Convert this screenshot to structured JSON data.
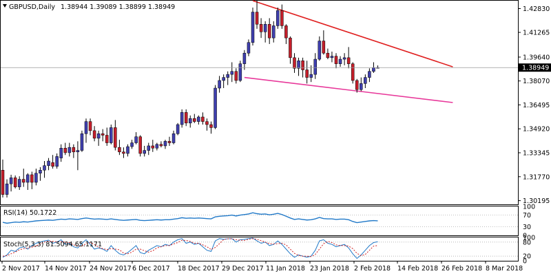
{
  "header": {
    "symbol_timeframe": "GBPUSD,Daily",
    "ohlc": "1.38944 1.39089 1.38899 1.38949"
  },
  "colors": {
    "bull_body": "#3f3fae",
    "bear_body": "#c51f2b",
    "wick": "#000000",
    "resistance_line": "#e02020",
    "support_line": "#e8389a",
    "last_price_line": "#9b9b9b",
    "rsi_line": "#1f78c8",
    "stoch_main": "#1f78c8",
    "stoch_signal": "#d02020",
    "grid_dotted": "#aaaaaa"
  },
  "chart_data": [
    {
      "type": "candlestick",
      "title": "GBPUSD,Daily",
      "y_ticks": [
        "1.42830",
        "1.41265",
        "1.39640",
        "1.38070",
        "1.36495",
        "1.34920",
        "1.33345",
        "1.31770",
        "1.30195"
      ],
      "ylim": [
        1.2995,
        1.4335
      ],
      "last_price_label": "1.38949",
      "last_price": 1.38949,
      "x_ticks": [
        "2 Nov 2017",
        "14 Nov 2017",
        "24 Nov 2017",
        "6 Dec 2017",
        "18 Dec 2017",
        "29 Dec 2017",
        "11 Jan 2018",
        "23 Jan 2018",
        "2 Feb 2018",
        "14 Feb 2018",
        "26 Feb 2018",
        "8 Mar 2018"
      ],
      "candles": [
        [
          1.322,
          1.329,
          1.304,
          1.306
        ],
        [
          1.306,
          1.316,
          1.304,
          1.313
        ],
        [
          1.313,
          1.319,
          1.308,
          1.317
        ],
        [
          1.317,
          1.3185,
          1.31,
          1.311
        ],
        [
          1.311,
          1.318,
          1.309,
          1.316
        ],
        [
          1.316,
          1.323,
          1.311,
          1.314
        ],
        [
          1.314,
          1.32,
          1.309,
          1.319
        ],
        [
          1.319,
          1.321,
          1.3095,
          1.314
        ],
        [
          1.314,
          1.323,
          1.312,
          1.32
        ],
        [
          1.32,
          1.324,
          1.315,
          1.322
        ],
        [
          1.322,
          1.328,
          1.317,
          1.325
        ],
        [
          1.325,
          1.33,
          1.322,
          1.328
        ],
        [
          1.327,
          1.332,
          1.323,
          1.3245
        ],
        [
          1.3245,
          1.333,
          1.323,
          1.331
        ],
        [
          1.33,
          1.339,
          1.3275,
          1.3365
        ],
        [
          1.3365,
          1.34,
          1.332,
          1.3335
        ],
        [
          1.3335,
          1.34,
          1.331,
          1.337
        ],
        [
          1.337,
          1.339,
          1.33,
          1.334
        ],
        [
          1.334,
          1.341,
          1.322,
          1.335
        ],
        [
          1.335,
          1.348,
          1.334,
          1.346
        ],
        [
          1.346,
          1.356,
          1.34,
          1.354
        ],
        [
          1.354,
          1.356,
          1.345,
          1.348
        ],
        [
          1.348,
          1.351,
          1.341,
          1.343
        ],
        [
          1.343,
          1.348,
          1.338,
          1.346
        ],
        [
          1.346,
          1.349,
          1.341,
          1.345
        ],
        [
          1.345,
          1.35,
          1.338,
          1.34
        ],
        [
          1.34,
          1.352,
          1.339,
          1.35
        ],
        [
          1.35,
          1.355,
          1.335,
          1.337
        ],
        [
          1.337,
          1.342,
          1.332,
          1.334
        ],
        [
          1.334,
          1.337,
          1.33,
          1.333
        ],
        [
          1.333,
          1.339,
          1.331,
          1.3375
        ],
        [
          1.3375,
          1.342,
          1.336,
          1.34
        ],
        [
          1.34,
          1.347,
          1.339,
          1.344
        ],
        [
          1.344,
          1.345,
          1.331,
          1.333
        ],
        [
          1.333,
          1.338,
          1.331,
          1.335
        ],
        [
          1.335,
          1.34,
          1.332,
          1.338
        ],
        [
          1.338,
          1.342,
          1.334,
          1.3365
        ],
        [
          1.3365,
          1.34,
          1.335,
          1.339
        ],
        [
          1.339,
          1.341,
          1.337,
          1.338
        ],
        [
          1.338,
          1.342,
          1.336,
          1.341
        ],
        [
          1.341,
          1.344,
          1.338,
          1.34
        ],
        [
          1.34,
          1.348,
          1.339,
          1.346
        ],
        [
          1.346,
          1.353,
          1.345,
          1.352
        ],
        [
          1.352,
          1.362,
          1.35,
          1.36
        ],
        [
          1.36,
          1.362,
          1.351,
          1.353
        ],
        [
          1.353,
          1.358,
          1.35,
          1.356
        ],
        [
          1.356,
          1.359,
          1.353,
          1.354
        ],
        [
          1.354,
          1.358,
          1.352,
          1.357
        ],
        [
          1.357,
          1.36,
          1.352,
          1.354
        ],
        [
          1.354,
          1.356,
          1.348,
          1.352
        ],
        [
          1.352,
          1.354,
          1.346,
          1.35
        ],
        [
          1.35,
          1.378,
          1.349,
          1.376
        ],
        [
          1.376,
          1.384,
          1.373,
          1.381
        ],
        [
          1.381,
          1.385,
          1.376,
          1.383
        ],
        [
          1.383,
          1.387,
          1.378,
          1.385
        ],
        [
          1.385,
          1.393,
          1.38,
          1.387
        ],
        [
          1.387,
          1.389,
          1.379,
          1.381
        ],
        [
          1.381,
          1.394,
          1.38,
          1.392
        ],
        [
          1.392,
          1.401,
          1.388,
          1.399
        ],
        [
          1.399,
          1.408,
          1.397,
          1.406
        ],
        [
          1.406,
          1.429,
          1.404,
          1.426
        ],
        [
          1.426,
          1.434,
          1.415,
          1.418
        ],
        [
          1.418,
          1.422,
          1.409,
          1.413
        ],
        [
          1.413,
          1.42,
          1.406,
          1.418
        ],
        [
          1.418,
          1.422,
          1.405,
          1.409
        ],
        [
          1.409,
          1.42,
          1.406,
          1.417
        ],
        [
          1.417,
          1.429,
          1.415,
          1.427
        ],
        [
          1.427,
          1.431,
          1.415,
          1.417
        ],
        [
          1.417,
          1.418,
          1.405,
          1.409
        ],
        [
          1.409,
          1.41,
          1.392,
          1.396
        ],
        [
          1.396,
          1.399,
          1.386,
          1.389
        ],
        [
          1.389,
          1.396,
          1.384,
          1.394
        ],
        [
          1.394,
          1.396,
          1.383,
          1.388
        ],
        [
          1.388,
          1.394,
          1.379,
          1.383
        ],
        [
          1.383,
          1.391,
          1.38,
          1.385
        ],
        [
          1.385,
          1.399,
          1.382,
          1.395
        ],
        [
          1.395,
          1.41,
          1.394,
          1.407
        ],
        [
          1.407,
          1.414,
          1.398,
          1.399
        ],
        [
          1.399,
          1.402,
          1.395,
          1.396
        ],
        [
          1.396,
          1.4,
          1.393,
          1.397
        ],
        [
          1.397,
          1.399,
          1.389,
          1.392
        ],
        [
          1.392,
          1.397,
          1.39,
          1.395
        ],
        [
          1.395,
          1.399,
          1.391,
          1.396
        ],
        [
          1.396,
          1.403,
          1.389,
          1.392
        ],
        [
          1.392,
          1.393,
          1.379,
          1.381
        ],
        [
          1.381,
          1.382,
          1.373,
          1.375
        ],
        [
          1.375,
          1.383,
          1.374,
          1.379
        ],
        [
          1.379,
          1.385,
          1.376,
          1.383
        ],
        [
          1.383,
          1.389,
          1.38,
          1.387
        ],
        [
          1.387,
          1.393,
          1.386,
          1.3895
        ],
        [
          1.3894,
          1.3909,
          1.389,
          1.3895
        ]
      ],
      "trendlines": [
        {
          "name": "resistance",
          "x1": 60,
          "y1": 1.4335,
          "x2": 108,
          "y2": 1.39
        },
        {
          "name": "support",
          "x1": 58,
          "y1": 1.383,
          "x2": 108,
          "y2": 1.3665
        }
      ]
    },
    {
      "type": "line",
      "title": "RSI(14) 50.1722",
      "name": "RSI(14)",
      "y_ticks": [
        "100",
        "70",
        "30",
        "0"
      ],
      "ylim": [
        0,
        100
      ],
      "levels": [
        70,
        30
      ],
      "values": [
        45,
        42,
        44,
        46,
        45,
        47,
        46,
        48,
        50,
        51,
        52,
        53,
        52,
        54,
        56,
        55,
        57,
        56,
        55,
        58,
        60,
        58,
        56,
        57,
        56,
        55,
        57,
        55,
        53,
        52,
        53,
        54,
        55,
        52,
        51,
        52,
        53,
        54,
        53,
        54,
        54,
        56,
        58,
        61,
        59,
        60,
        59,
        60,
        59,
        58,
        57,
        64,
        66,
        67,
        68,
        70,
        67,
        70,
        72,
        74,
        78,
        75,
        73,
        74,
        71,
        73,
        76,
        72,
        66,
        60,
        55,
        57,
        55,
        53,
        54,
        57,
        62,
        58,
        57,
        57,
        55,
        56,
        56,
        54,
        48,
        44,
        46,
        48,
        50,
        51,
        50.17
      ]
    },
    {
      "type": "line",
      "title": "Stoch(5,3,3) 81.5094 65.1171",
      "name": "Stoch(5,3,3)",
      "y_ticks": [
        "100",
        "80",
        "20",
        "0"
      ],
      "ylim": [
        0,
        100
      ],
      "levels": [
        80,
        20
      ],
      "series": [
        {
          "name": "main",
          "values": [
            15,
            25,
            45,
            40,
            55,
            60,
            50,
            65,
            75,
            80,
            85,
            88,
            75,
            80,
            90,
            70,
            75,
            60,
            55,
            75,
            90,
            70,
            50,
            55,
            50,
            40,
            65,
            45,
            30,
            25,
            35,
            50,
            65,
            35,
            30,
            45,
            55,
            65,
            60,
            70,
            65,
            80,
            90,
            95,
            75,
            80,
            70,
            75,
            60,
            45,
            40,
            85,
            95,
            92,
            94,
            95,
            80,
            90,
            92,
            95,
            97,
            85,
            75,
            80,
            65,
            70,
            85,
            70,
            50,
            30,
            15,
            25,
            20,
            15,
            20,
            45,
            85,
            90,
            75,
            70,
            60,
            65,
            70,
            55,
            30,
            10,
            25,
            45,
            65,
            78,
            81.5
          ]
        },
        {
          "name": "signal",
          "values": [
            20,
            22,
            30,
            37,
            47,
            52,
            55,
            58,
            63,
            73,
            80,
            84,
            83,
            81,
            82,
            80,
            78,
            68,
            63,
            63,
            73,
            78,
            70,
            58,
            52,
            48,
            52,
            50,
            47,
            33,
            30,
            37,
            50,
            50,
            43,
            37,
            43,
            55,
            60,
            65,
            65,
            72,
            78,
            88,
            87,
            83,
            75,
            75,
            68,
            60,
            48,
            57,
            73,
            91,
            94,
            94,
            90,
            88,
            87,
            92,
            95,
            92,
            86,
            80,
            73,
            72,
            73,
            75,
            68,
            50,
            32,
            23,
            20,
            20,
            18,
            27,
            50,
            73,
            83,
            78,
            68,
            65,
            65,
            63,
            52,
            32,
            22,
            27,
            45,
            63,
            65.1
          ]
        }
      ]
    }
  ]
}
